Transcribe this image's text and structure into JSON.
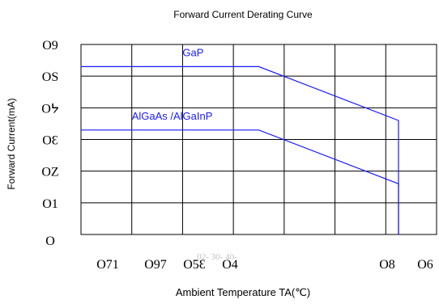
{
  "chart_data": {
    "type": "line",
    "title": "Forward Current Derating Curve",
    "xlabel": "Ambient Temperature TA(℃)",
    "ylabel": "Forward Current(mA)",
    "xlim": [
      -40,
      100
    ],
    "ylim": [
      0,
      60
    ],
    "grid": true,
    "y_ticks": [
      "0",
      "10",
      "20",
      "30",
      "40",
      "50",
      "60"
    ],
    "y_ticks_rendered": [
      "O",
      "O1",
      "OZ",
      "OƐ",
      "Oᔭ",
      "OS",
      "O9"
    ],
    "x_ticks_rendered": [
      "O71",
      "O97",
      "O5Ɛ",
      "O4",
      "O8",
      "O6"
    ],
    "x_tick_extra": "02- 30- 40-",
    "series": [
      {
        "name": "GaP",
        "x": [
          -40,
          30,
          85,
          85
        ],
        "y": [
          53,
          53,
          36,
          0
        ]
      },
      {
        "name": "AlGaAs /AlGaInP",
        "x": [
          -40,
          30,
          85,
          85
        ],
        "y": [
          33,
          33,
          16,
          0
        ]
      }
    ]
  }
}
